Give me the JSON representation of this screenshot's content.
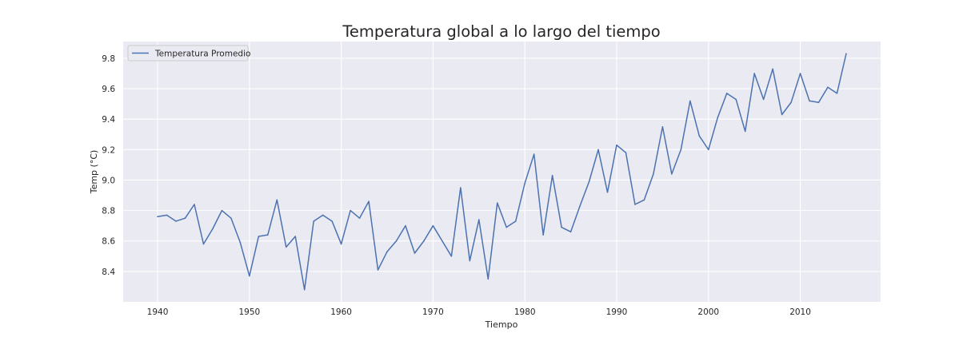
{
  "chart_data": {
    "type": "line",
    "title": "Temperatura global a lo largo del tiempo",
    "xlabel": "Tiempo",
    "ylabel": "Temp (°C)",
    "xlim": [
      1936.25,
      2018.75
    ],
    "ylim": [
      8.2,
      9.91
    ],
    "xticks": [
      1940,
      1950,
      1960,
      1970,
      1980,
      1990,
      2000,
      2010
    ],
    "yticks": [
      8.4,
      8.6,
      8.8,
      9.0,
      9.2,
      9.4,
      9.6,
      9.8
    ],
    "grid": true,
    "legend_position": "top-left",
    "series": [
      {
        "name": "Temperatura Promedio",
        "color": "#4c72b0",
        "x": [
          1940,
          1941,
          1942,
          1943,
          1944,
          1945,
          1946,
          1947,
          1948,
          1949,
          1950,
          1951,
          1952,
          1953,
          1954,
          1955,
          1956,
          1957,
          1958,
          1959,
          1960,
          1961,
          1962,
          1963,
          1964,
          1965,
          1966,
          1967,
          1968,
          1969,
          1970,
          1971,
          1972,
          1973,
          1974,
          1975,
          1976,
          1977,
          1978,
          1979,
          1980,
          1981,
          1982,
          1983,
          1984,
          1985,
          1986,
          1987,
          1988,
          1989,
          1990,
          1991,
          1992,
          1993,
          1994,
          1995,
          1996,
          1997,
          1998,
          1999,
          2000,
          2001,
          2002,
          2003,
          2004,
          2005,
          2006,
          2007,
          2008,
          2009,
          2010,
          2011,
          2012,
          2013,
          2014,
          2015
        ],
        "values": [
          8.76,
          8.77,
          8.73,
          8.75,
          8.84,
          8.58,
          8.68,
          8.8,
          8.75,
          8.59,
          8.37,
          8.63,
          8.64,
          8.87,
          8.56,
          8.63,
          8.28,
          8.73,
          8.77,
          8.73,
          8.58,
          8.8,
          8.75,
          8.86,
          8.41,
          8.53,
          8.6,
          8.7,
          8.52,
          8.6,
          8.7,
          8.6,
          8.5,
          8.95,
          8.47,
          8.74,
          8.35,
          8.85,
          8.69,
          8.73,
          8.98,
          9.17,
          8.64,
          9.03,
          8.69,
          8.66,
          8.83,
          8.99,
          9.2,
          8.92,
          9.23,
          9.18,
          8.84,
          8.87,
          9.04,
          9.35,
          9.04,
          9.2,
          9.52,
          9.29,
          9.2,
          9.41,
          9.57,
          9.53,
          9.32,
          9.7,
          9.53,
          9.73,
          9.43,
          9.51,
          9.7,
          9.52,
          9.51,
          9.61,
          9.57,
          9.83
        ]
      }
    ]
  }
}
